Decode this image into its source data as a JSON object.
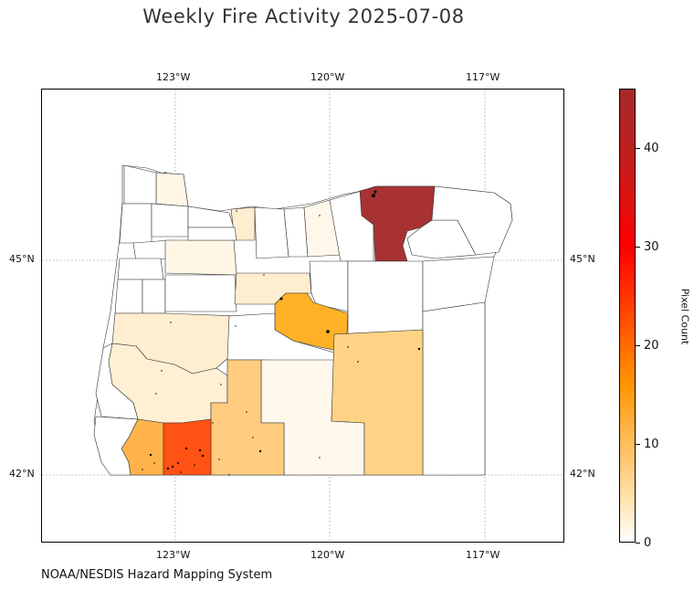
{
  "title": "Weekly Fire Activity 2025-07-08",
  "credit": "NOAA/NESDIS Hazard Mapping System",
  "map": {
    "lon_ticks": [
      "123°W",
      "120°W",
      "117°W"
    ],
    "lat_ticks": [
      "45°N",
      "42°N"
    ],
    "gridlines": true,
    "colormap": [
      "#ffffff",
      "#ffe0a8",
      "#ffb347",
      "#ff9500",
      "#ff4a00",
      "#ff0000",
      "#a52a2a"
    ]
  },
  "colorbar": {
    "label": "Pixel Count",
    "ticks": [
      "0",
      "10",
      "20",
      "30",
      "40"
    ],
    "tick_values": [
      0,
      10,
      20,
      30,
      40
    ],
    "max": 46
  }
}
